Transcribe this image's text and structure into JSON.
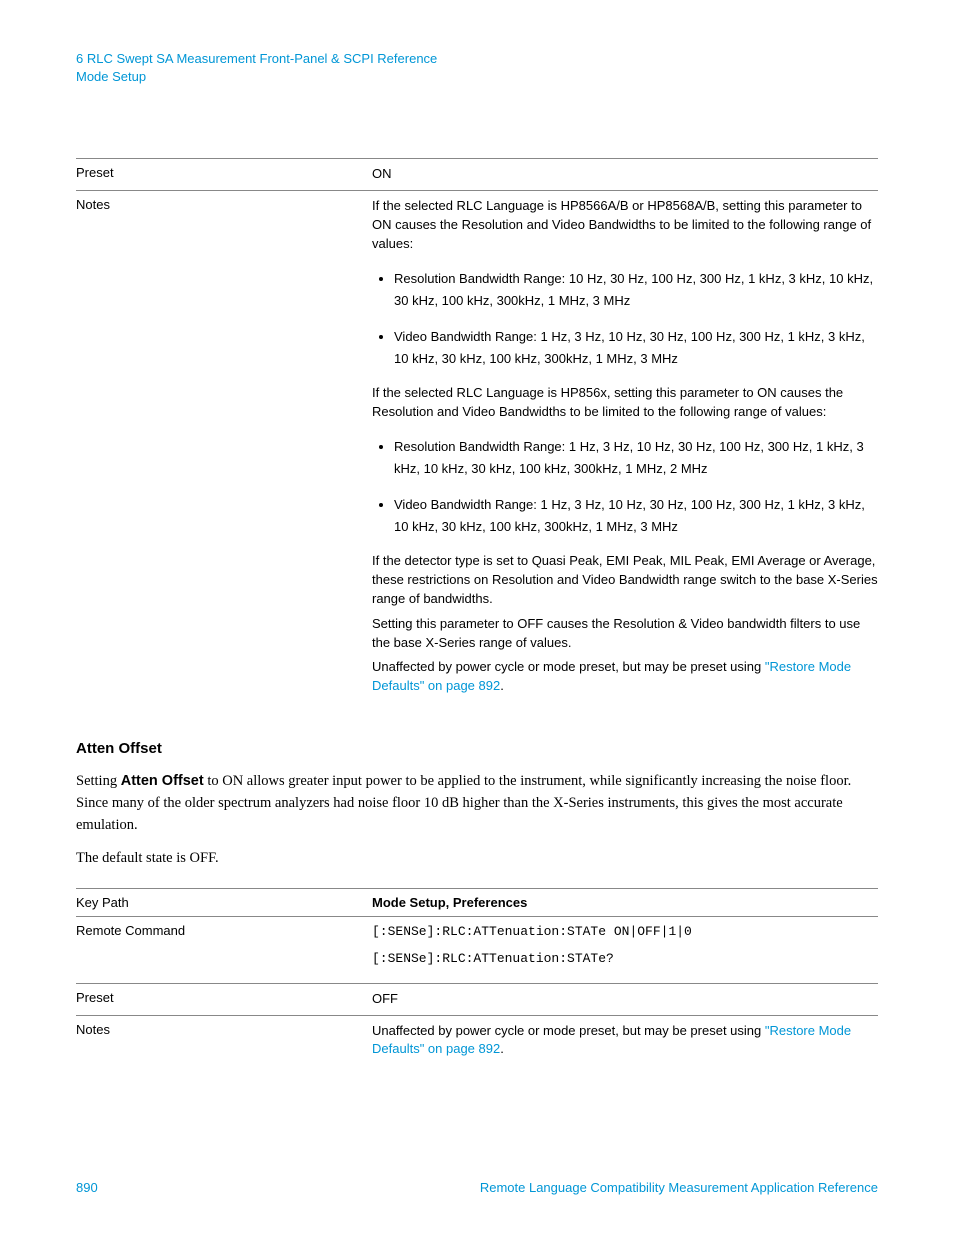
{
  "header": {
    "line1": "6  RLC Swept SA Measurement Front-Panel & SCPI Reference",
    "line2": "Mode Setup"
  },
  "table1": {
    "preset_label": "Preset",
    "preset_value": "ON",
    "notes_label": "Notes",
    "notes_p1": "If the selected RLC Language is HP8566A/B or HP8568A/B, setting this parameter to ON causes the Resolution and Video Bandwidths to be limited to the following range of values:",
    "notes_li1": "Resolution Bandwidth Range: 10 Hz, 30 Hz, 100 Hz, 300 Hz, 1 kHz, 3 kHz, 10 kHz, 30 kHz, 100 kHz, 300kHz, 1 MHz, 3 MHz",
    "notes_li2": "Video Bandwidth Range: 1 Hz, 3 Hz, 10 Hz, 30 Hz, 100 Hz, 300 Hz, 1 kHz, 3 kHz, 10 kHz, 30 kHz, 100 kHz, 300kHz, 1 MHz, 3 MHz",
    "notes_p2": "If the selected RLC Language is HP856x, setting this parameter to ON causes the Resolution and Video Bandwidths to be limited to the following range of values:",
    "notes_li3": "Resolution Bandwidth Range: 1 Hz, 3 Hz, 10 Hz, 30 Hz, 100 Hz, 300 Hz, 1 kHz, 3 kHz, 10 kHz, 30 kHz, 100 kHz, 300kHz, 1 MHz, 2 MHz",
    "notes_li4": "Video Bandwidth Range: 1 Hz, 3 Hz, 10 Hz, 30 Hz, 100 Hz, 300 Hz, 1 kHz, 3 kHz, 10 kHz, 30 kHz, 100 kHz, 300kHz, 1 MHz, 3 MHz",
    "notes_p3": "If the detector type is set to Quasi Peak, EMI Peak, MIL Peak, EMI Average or Average, these restrictions on Resolution and Video Bandwidth range switch to the base X-Series range of bandwidths.",
    "notes_p4": "Setting this parameter to OFF causes the Resolution & Video bandwidth filters to use the base X-Series range of values.",
    "notes_p5a": "Unaffected by power cycle or mode preset, but may be preset using ",
    "notes_link": "\"Restore Mode Defaults\" on page 892",
    "notes_p5b": "."
  },
  "section": {
    "heading": "Atten Offset",
    "body1a": "Setting ",
    "body1b": "Atten Offset",
    "body1c": " to ON allows greater input power to be applied to the instrument, while significantly increasing the noise floor. Since many of the older spectrum analyzers had noise floor 10 dB higher than the X-Series instruments, this gives the most accurate emulation.",
    "body2": "The default state is OFF."
  },
  "table2": {
    "keypath_label": "Key Path",
    "keypath_value": "Mode Setup, Preferences",
    "remote_label": "Remote Command",
    "remote_cmd1": "[:SENSe]:RLC:ATTenuation:STATe ON|OFF|1|0",
    "remote_cmd2": "[:SENSe]:RLC:ATTenuation:STATe?",
    "preset_label": "Preset",
    "preset_value": "OFF",
    "notes_label": "Notes",
    "notes_a": "Unaffected by power cycle or mode preset, but may be preset using ",
    "notes_link": "\"Restore Mode Defaults\" on page 892",
    "notes_b": "."
  },
  "footer": {
    "page": "890",
    "title": "Remote Language Compatibility Measurement Application Reference"
  }
}
